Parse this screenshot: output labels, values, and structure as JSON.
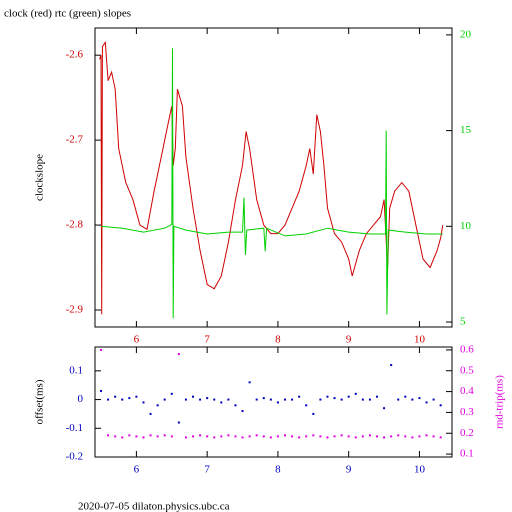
{
  "chart_data": [
    {
      "type": "line",
      "title": "clock (red) rtc (green) slopes",
      "ylabel": "clockslope",
      "xlim": [
        5.415,
        10.46
      ],
      "xticks": [
        6,
        7,
        8,
        9,
        10
      ],
      "ylim": [
        -2.92,
        -2.568
      ],
      "yticks": [
        -2.9,
        -2.8,
        -2.7,
        -2.6
      ],
      "y2lim": [
        4.74,
        20.36
      ],
      "y2ticks": [
        5,
        10,
        15,
        20
      ],
      "axis_colors": {
        "x": "#d00000",
        "y": "#d00000",
        "y2": "#00d000"
      },
      "series": [
        {
          "name": "clock",
          "color": "#d00000",
          "x": [
            5.48,
            5.5,
            5.51,
            5.52,
            5.56,
            5.6,
            5.65,
            5.7,
            5.75,
            5.85,
            5.95,
            6.05,
            6.15,
            6.25,
            6.35,
            6.45,
            6.5,
            6.52,
            6.55,
            6.58,
            6.65,
            6.7,
            6.8,
            6.9,
            7.0,
            7.1,
            7.2,
            7.3,
            7.4,
            7.5,
            7.55,
            7.6,
            7.7,
            7.8,
            7.9,
            8.0,
            8.1,
            8.2,
            8.3,
            8.4,
            8.45,
            8.5,
            8.55,
            8.6,
            8.65,
            8.7,
            8.8,
            8.9,
            9.0,
            9.05,
            9.15,
            9.25,
            9.35,
            9.45,
            9.5,
            9.55,
            9.58,
            9.65,
            9.75,
            9.85,
            9.95,
            10.05,
            10.15,
            10.25,
            10.3,
            10.33
          ],
          "values": [
            -2.605,
            -2.6,
            -2.905,
            -2.59,
            -2.585,
            -2.63,
            -2.62,
            -2.64,
            -2.71,
            -2.75,
            -2.77,
            -2.8,
            -2.805,
            -2.76,
            -2.72,
            -2.68,
            -2.66,
            -2.73,
            -2.71,
            -2.64,
            -2.66,
            -2.72,
            -2.78,
            -2.83,
            -2.87,
            -2.875,
            -2.86,
            -2.82,
            -2.77,
            -2.73,
            -2.69,
            -2.71,
            -2.77,
            -2.8,
            -2.81,
            -2.81,
            -2.8,
            -2.78,
            -2.76,
            -2.73,
            -2.71,
            -2.74,
            -2.67,
            -2.69,
            -2.73,
            -2.78,
            -2.81,
            -2.82,
            -2.84,
            -2.86,
            -2.83,
            -2.81,
            -2.8,
            -2.79,
            -2.77,
            -2.85,
            -2.78,
            -2.76,
            -2.75,
            -2.76,
            -2.8,
            -2.84,
            -2.85,
            -2.83,
            -2.815,
            -2.8
          ]
        },
        {
          "name": "rtc",
          "color": "#00d000",
          "axis": "y2",
          "x": [
            5.5,
            5.8,
            6.1,
            6.4,
            6.5,
            6.51,
            6.52,
            6.53,
            6.7,
            7.0,
            7.3,
            7.5,
            7.52,
            7.54,
            7.56,
            7.8,
            7.82,
            7.84,
            8.1,
            8.4,
            8.7,
            9.0,
            9.3,
            9.52,
            9.53,
            9.54,
            9.56,
            9.8,
            10.1,
            10.33
          ],
          "values": [
            10.0,
            9.9,
            9.7,
            9.9,
            10.1,
            19.3,
            5.2,
            10.0,
            9.8,
            9.6,
            9.7,
            9.7,
            11.5,
            8.5,
            9.8,
            9.9,
            8.7,
            9.9,
            9.5,
            9.6,
            9.9,
            9.7,
            9.6,
            9.6,
            15.0,
            5.4,
            9.8,
            9.7,
            9.6,
            9.6
          ]
        }
      ]
    },
    {
      "type": "scatter",
      "ylabel": "offset(ms)",
      "y2label": "rnd-trip(ms)",
      "xlim": [
        5.415,
        10.46
      ],
      "xticks": [
        6,
        7,
        8,
        9,
        10
      ],
      "ylim": [
        -0.2,
        0.183
      ],
      "yticks": [
        -0.2,
        -0.1,
        0,
        0.1
      ],
      "y2lim": [
        0.086,
        0.614
      ],
      "y2ticks": [
        0.1,
        0.2,
        0.3,
        0.4,
        0.5,
        0.6
      ],
      "axis_colors": {
        "x": "#0000c0",
        "y": "#0000c0",
        "y2": "#e000e0"
      },
      "x": [
        5.5,
        5.6,
        5.7,
        5.8,
        5.9,
        6.0,
        6.1,
        6.2,
        6.3,
        6.4,
        6.5,
        6.6,
        6.7,
        6.8,
        6.9,
        7.0,
        7.1,
        7.2,
        7.3,
        7.4,
        7.5,
        7.6,
        7.7,
        7.8,
        7.9,
        8.0,
        8.1,
        8.2,
        8.3,
        8.4,
        8.5,
        8.6,
        8.7,
        8.8,
        8.9,
        9.0,
        9.1,
        9.2,
        9.3,
        9.4,
        9.5,
        9.6,
        9.7,
        9.8,
        9.9,
        10.0,
        10.1,
        10.2,
        10.3
      ],
      "series": [
        {
          "name": "offset",
          "color": "#0000c0",
          "values": [
            0.03,
            0.0,
            0.01,
            0.0,
            0.005,
            0.01,
            -0.01,
            -0.05,
            -0.02,
            0.0,
            0.02,
            -0.08,
            0.0,
            0.01,
            0.0,
            0.005,
            0.0,
            -0.01,
            0.0,
            -0.02,
            -0.04,
            0.06,
            0.0,
            0.005,
            0.0,
            -0.01,
            0.0,
            0.0,
            0.01,
            -0.02,
            -0.05,
            0.0,
            0.01,
            0.005,
            0.0,
            0.01,
            0.02,
            0.0,
            0.0,
            0.01,
            -0.03,
            0.12,
            0.0,
            0.01,
            0.0,
            0.005,
            -0.01,
            0.0,
            -0.02
          ]
        },
        {
          "name": "rnd-trip",
          "color": "#e000e0",
          "axis": "y2",
          "values": [
            0.6,
            0.19,
            0.185,
            0.18,
            0.19,
            0.185,
            0.18,
            0.19,
            0.185,
            0.19,
            0.185,
            0.58,
            0.18,
            0.185,
            0.19,
            0.185,
            0.18,
            0.185,
            0.19,
            0.185,
            0.18,
            0.185,
            0.19,
            0.185,
            0.18,
            0.185,
            0.19,
            0.185,
            0.18,
            0.185,
            0.19,
            0.185,
            0.18,
            0.185,
            0.19,
            0.185,
            0.18,
            0.185,
            0.19,
            0.185,
            0.18,
            0.185,
            0.19,
            0.185,
            0.18,
            0.185,
            0.19,
            0.185,
            0.18
          ]
        }
      ]
    }
  ],
  "footer": "2020-07-05 dilaton.physics.ubc.ca"
}
